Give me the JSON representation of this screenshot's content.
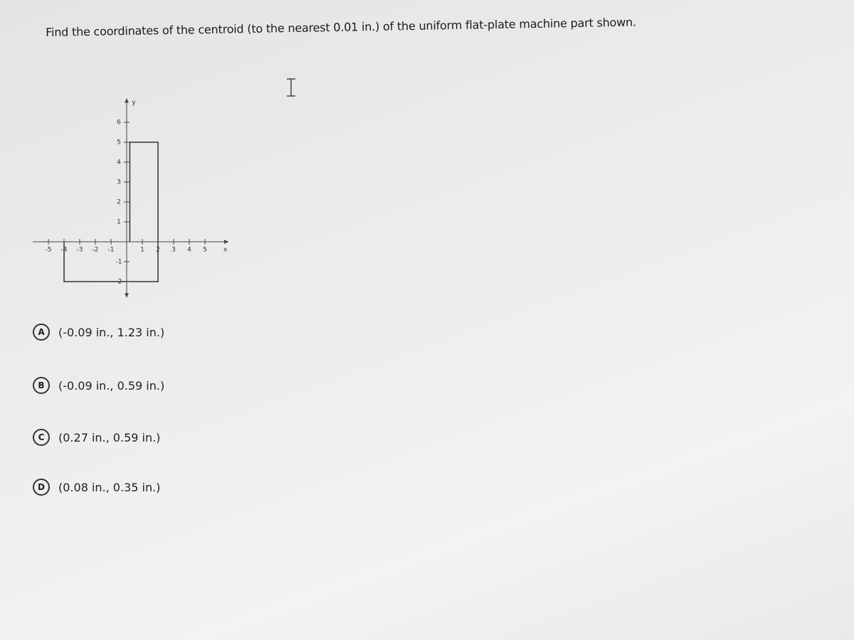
{
  "question": "Find the coordinates of the centroid (to the nearest 0.01 in.) of the uniform flat-plate machine part shown.",
  "figure": {
    "x_label": "x",
    "y_label": "y",
    "x_ticks": [
      "-5",
      "-4",
      "-3",
      "-2",
      "-1",
      "1",
      "2",
      "3",
      "4",
      "5"
    ],
    "y_ticks": [
      "6",
      "5",
      "4",
      "3",
      "2",
      "1",
      "-1",
      "-2"
    ]
  },
  "options": [
    {
      "letter": "A",
      "text": "(-0.09 in., 1.23 in.)"
    },
    {
      "letter": "B",
      "text": "(-0.09 in., 0.59 in.)"
    },
    {
      "letter": "C",
      "text": "(0.27 in., 0.59 in.)"
    },
    {
      "letter": "D",
      "text": "(0.08 in., 0.35 in.)"
    }
  ]
}
